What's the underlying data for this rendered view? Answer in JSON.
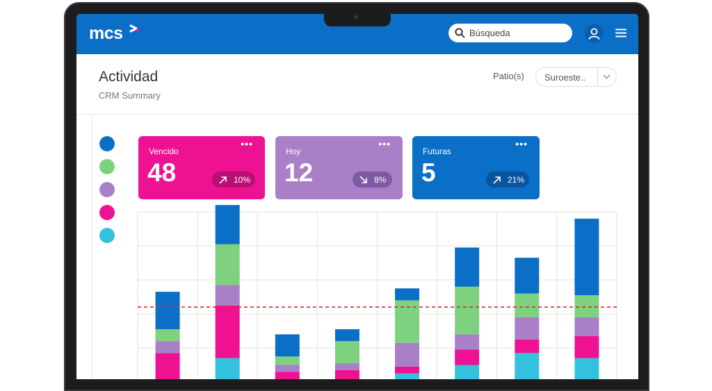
{
  "app": {
    "logo_text": "mcs",
    "brand_color": "#0b6fc7"
  },
  "search": {
    "placeholder": "Búsqueda"
  },
  "header": {
    "title": "Actividad",
    "subtitle": "CRM Summary",
    "filter_label": "Patio(s)",
    "filter_value": "Suroeste.."
  },
  "legend": [
    {
      "color": "#0b6fc7"
    },
    {
      "color": "#7ed17e"
    },
    {
      "color": "#a97fc8"
    },
    {
      "color": "#ee1192"
    },
    {
      "color": "#33c1dd"
    }
  ],
  "cards": [
    {
      "label": "Vencido",
      "value": "48",
      "change": "10%",
      "trend": "up",
      "color": "#ee1192",
      "badge_color": "#b80f72",
      "more": "•••"
    },
    {
      "label": "Hoy",
      "value": "12",
      "change": "8%",
      "trend": "down",
      "color": "#a97fc8",
      "badge_color": "#7e5aa3",
      "more": "•••"
    },
    {
      "label": "Futuras",
      "value": "5",
      "change": "21%",
      "trend": "up",
      "color": "#0b6fc7",
      "badge_color": "#08559e",
      "more": "•••"
    }
  ],
  "chart_data": {
    "type": "bar",
    "stacked": true,
    "y_range": [
      0,
      100
    ],
    "grid": true,
    "threshold": 44,
    "categories": 8,
    "series": [
      {
        "color": "#33c1dd",
        "values": [
          0,
          14,
          0,
          0,
          5,
          10,
          17,
          14
        ]
      },
      {
        "color": "#ee1192",
        "values": [
          17,
          31,
          6,
          7,
          4,
          9,
          8,
          13
        ]
      },
      {
        "color": "#a97fc8",
        "values": [
          7,
          12,
          4,
          4,
          14,
          9,
          13,
          11
        ]
      },
      {
        "color": "#7ed17e",
        "values": [
          7,
          24,
          5,
          13,
          25,
          28,
          14,
          13
        ]
      },
      {
        "color": "#0b6fc7",
        "values": [
          22,
          23,
          13,
          7,
          7,
          23,
          21,
          45
        ]
      }
    ]
  }
}
